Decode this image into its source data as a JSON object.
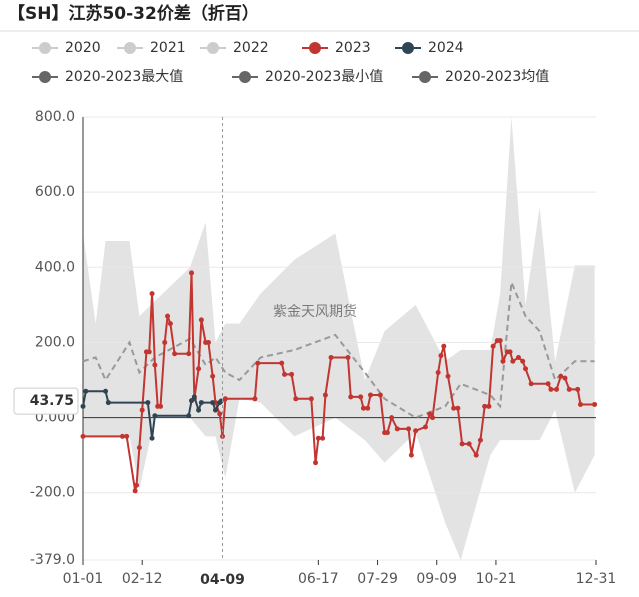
{
  "chart_data": {
    "type": "line",
    "title": "【SH】江苏50-32价差（折百）",
    "xlim": [
      0,
      364
    ],
    "xticks": [
      {
        "value": 0,
        "label": "01-01"
      },
      {
        "value": 42,
        "label": "02-12"
      },
      {
        "value": 167,
        "label": "06-17"
      },
      {
        "value": 209,
        "label": "07-29"
      },
      {
        "value": 251,
        "label": "09-09"
      },
      {
        "value": 293,
        "label": "10-21"
      },
      {
        "value": 364,
        "label": "12-31"
      }
    ],
    "ylim": [
      -379,
      800
    ],
    "yticks": [
      {
        "value": 800,
        "label": "800.0"
      },
      {
        "value": 600,
        "label": "600.0"
      },
      {
        "value": 400,
        "label": "400.0"
      },
      {
        "value": 200,
        "label": "200.0"
      },
      {
        "value": 0,
        "label": "0.000"
      },
      {
        "value": -200,
        "label": "-200.0"
      },
      {
        "value": -379,
        "label": "-379.0"
      }
    ],
    "grid": true,
    "pointer": {
      "x": {
        "value": 99,
        "label": "04-09"
      },
      "y": 43.75
    },
    "watermark": "紫金天风期货",
    "series": [
      {
        "name": "2020",
        "color": "#cccccc",
        "inactive": true
      },
      {
        "name": "2021",
        "color": "#cccccc",
        "inactive": true
      },
      {
        "name": "2022",
        "color": "#cccccc",
        "inactive": true
      },
      {
        "name": "2023",
        "color": "#c23531",
        "style": "line",
        "x": [
          0,
          28,
          31,
          37,
          38,
          40,
          42,
          45,
          47,
          49,
          51,
          53,
          55,
          58,
          60,
          62,
          65,
          75,
          77,
          79,
          82,
          84,
          87,
          89,
          92,
          94,
          97,
          99,
          101,
          122,
          124,
          141,
          143,
          148,
          151,
          162,
          165,
          167,
          170,
          172,
          176,
          188,
          190,
          197,
          199,
          202,
          204,
          211,
          214,
          216,
          219,
          223,
          231,
          233,
          236,
          243,
          246,
          248,
          252,
          254,
          256,
          259,
          263,
          266,
          269,
          274,
          279,
          282,
          285,
          288,
          291,
          294,
          296,
          298,
          301,
          303,
          305,
          309,
          312,
          314,
          318,
          330,
          332,
          336,
          339,
          342,
          345,
          351,
          353,
          363
        ],
        "values": [
          -50,
          -50,
          -50,
          -195,
          -180,
          -80,
          20,
          175,
          175,
          330,
          140,
          30,
          30,
          200,
          270,
          250,
          170,
          170,
          385,
          50,
          130,
          260,
          200,
          200,
          110,
          40,
          10,
          -50,
          50,
          50,
          145,
          145,
          115,
          115,
          50,
          50,
          -120,
          -55,
          -55,
          60,
          160,
          160,
          55,
          55,
          25,
          25,
          60,
          60,
          -40,
          -40,
          0,
          -30,
          -30,
          -100,
          -35,
          -25,
          10,
          0,
          120,
          165,
          190,
          110,
          25,
          25,
          -70,
          -70,
          -100,
          -60,
          30,
          30,
          190,
          205,
          205,
          150,
          175,
          175,
          150,
          160,
          150,
          130,
          90,
          90,
          75,
          75,
          110,
          105,
          75,
          75,
          35,
          35
        ]
      },
      {
        "name": "2024",
        "color": "#2f4554",
        "style": "line",
        "x": [
          0,
          2,
          16,
          18,
          46,
          49,
          51,
          75,
          77,
          79,
          82,
          84,
          92,
          94,
          97,
          98
        ],
        "values": [
          30,
          70,
          70,
          40,
          40,
          -55,
          5,
          5,
          45,
          55,
          20,
          40,
          40,
          20,
          40,
          44
        ]
      },
      {
        "name": "2020-2023最大值",
        "color": "#666666",
        "style": "band-top",
        "fill": "#e3e3e3",
        "x": [
          0,
          9,
          16,
          33,
          40,
          51,
          76,
          87,
          94,
          101,
          111,
          126,
          150,
          179,
          200,
          214,
          236,
          257,
          268,
          289,
          296,
          304,
          314,
          324,
          335,
          349,
          363
        ],
        "values": [
          490,
          250,
          470,
          470,
          270,
          310,
          400,
          520,
          200,
          250,
          250,
          330,
          420,
          490,
          100,
          230,
          300,
          150,
          180,
          180,
          330,
          800,
          300,
          560,
          150,
          405,
          405
        ]
      },
      {
        "name": "2020-2023最小值",
        "color": "#666666",
        "style": "band-bottom",
        "fill": "#ffffff",
        "x": [
          0,
          9,
          16,
          33,
          40,
          51,
          76,
          87,
          94,
          101,
          111,
          126,
          150,
          179,
          200,
          214,
          236,
          257,
          268,
          289,
          296,
          304,
          314,
          324,
          335,
          349,
          363
        ],
        "values": [
          -50,
          -50,
          -50,
          -50,
          -190,
          0,
          0,
          -50,
          -50,
          -160,
          50,
          40,
          -50,
          0,
          -60,
          -120,
          -40,
          -280,
          -379,
          -100,
          -60,
          -60,
          -60,
          -60,
          20,
          -200,
          -100
        ]
      },
      {
        "name": "2020-2023均值",
        "color": "#666666",
        "style": "dashed",
        "line": "#999999",
        "x": [
          0,
          9,
          16,
          33,
          40,
          51,
          76,
          87,
          94,
          101,
          111,
          126,
          150,
          179,
          200,
          214,
          236,
          257,
          268,
          289,
          296,
          304,
          314,
          324,
          335,
          349,
          363
        ],
        "values": [
          150,
          160,
          100,
          200,
          120,
          160,
          210,
          140,
          160,
          120,
          100,
          160,
          180,
          220,
          120,
          50,
          0,
          30,
          90,
          60,
          30,
          360,
          270,
          230,
          100,
          150,
          150
        ]
      }
    ]
  }
}
